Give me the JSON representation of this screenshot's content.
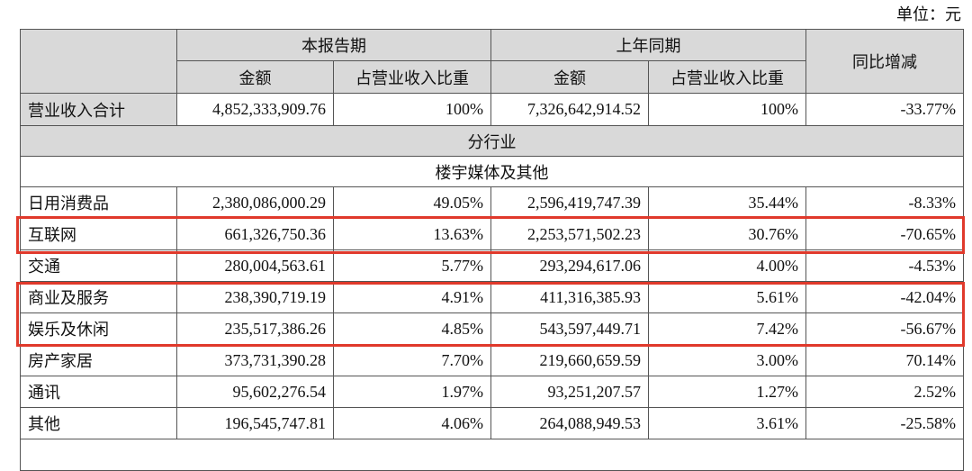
{
  "unit": "单位：元",
  "header": {
    "first": "",
    "current_period": "本报告期",
    "prior_period": "上年同期",
    "yoy": "同比增减",
    "columns": [
      "金额",
      "占营业收入比重",
      "金额",
      "占营业收入比重"
    ]
  },
  "total": {
    "label": "营业收入合计",
    "cells": [
      "4,852,333,909.76",
      "100%",
      "7,326,642,914.52",
      "100%",
      "-33.77%"
    ]
  },
  "section": "分行业",
  "group": "楼宇媒体及其他",
  "rows": [
    [
      "日用消费品",
      "2,380,086,000.29",
      "49.05%",
      "2,596,419,747.39",
      "35.44%",
      "-8.33%"
    ],
    [
      "互联网",
      "661,326,750.36",
      "13.63%",
      "2,253,571,502.23",
      "30.76%",
      "-70.65%"
    ],
    [
      "交通",
      "280,004,563.61",
      "5.77%",
      "293,294,617.06",
      "4.00%",
      "-4.53%"
    ],
    [
      "商业及服务",
      "238,390,719.19",
      "4.91%",
      "411,316,385.93",
      "5.61%",
      "-42.04%"
    ],
    [
      "娱乐及休闲",
      "235,517,386.26",
      "4.85%",
      "543,597,449.71",
      "7.42%",
      "-56.67%"
    ],
    [
      "房产家居",
      "373,731,390.28",
      "7.70%",
      "219,660,659.59",
      "3.00%",
      "70.14%"
    ],
    [
      "通讯",
      "95,602,276.54",
      "1.97%",
      "93,251,207.57",
      "1.27%",
      "2.52%"
    ],
    [
      "其他",
      "196,545,747.81",
      "4.06%",
      "264,088,949.53",
      "3.61%",
      "-25.58%"
    ]
  ]
}
